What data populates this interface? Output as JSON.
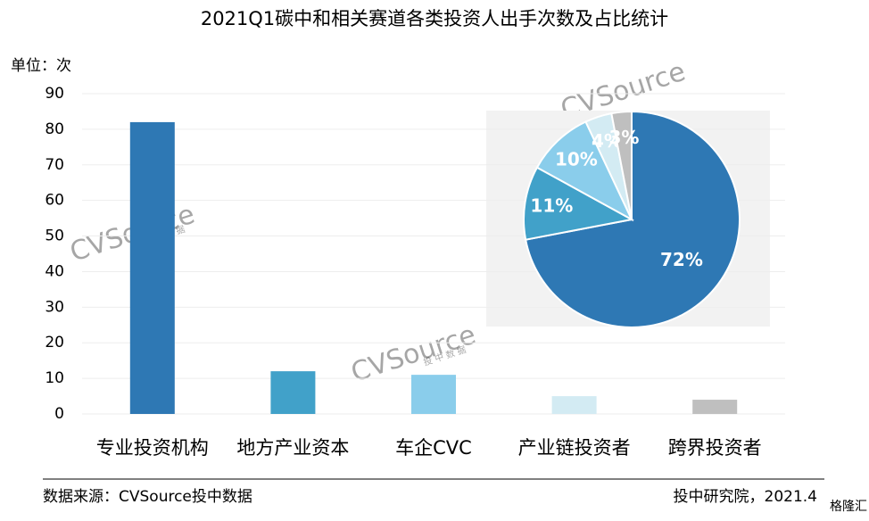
{
  "chart_data": [
    {
      "type": "bar",
      "title": "2021Q1碳中和相关赛道各类投资人出手次数及占比统计",
      "y_label": "单位：次",
      "categories": [
        "专业投资机构",
        "地方产业资本",
        "车企CVC",
        "产业链投资者",
        "跨界投资者"
      ],
      "values": [
        82,
        12,
        11,
        5,
        4
      ],
      "colors": [
        "#2e78b4",
        "#41a1c9",
        "#8acdeb",
        "#d3ebf3",
        "#bfbfbf"
      ],
      "ylim": [
        0,
        90
      ],
      "yticks": [
        0,
        10,
        20,
        30,
        40,
        50,
        60,
        70,
        80,
        90
      ],
      "grid": true,
      "source": "数据来源：CVSource投中数据",
      "note": "投中研究院，2021.4",
      "watermark": "CVSource",
      "watermark_sub": "投 中 数 据",
      "logo": "格隆汇"
    },
    {
      "type": "pie",
      "values": [
        72,
        11,
        10,
        4,
        3
      ],
      "value_labels": [
        "72%",
        "11%",
        "10%",
        "4%",
        "3%"
      ],
      "colors": [
        "#2e78b4",
        "#41a1c9",
        "#8acdeb",
        "#d3ebf3",
        "#bfbfbf"
      ]
    }
  ]
}
